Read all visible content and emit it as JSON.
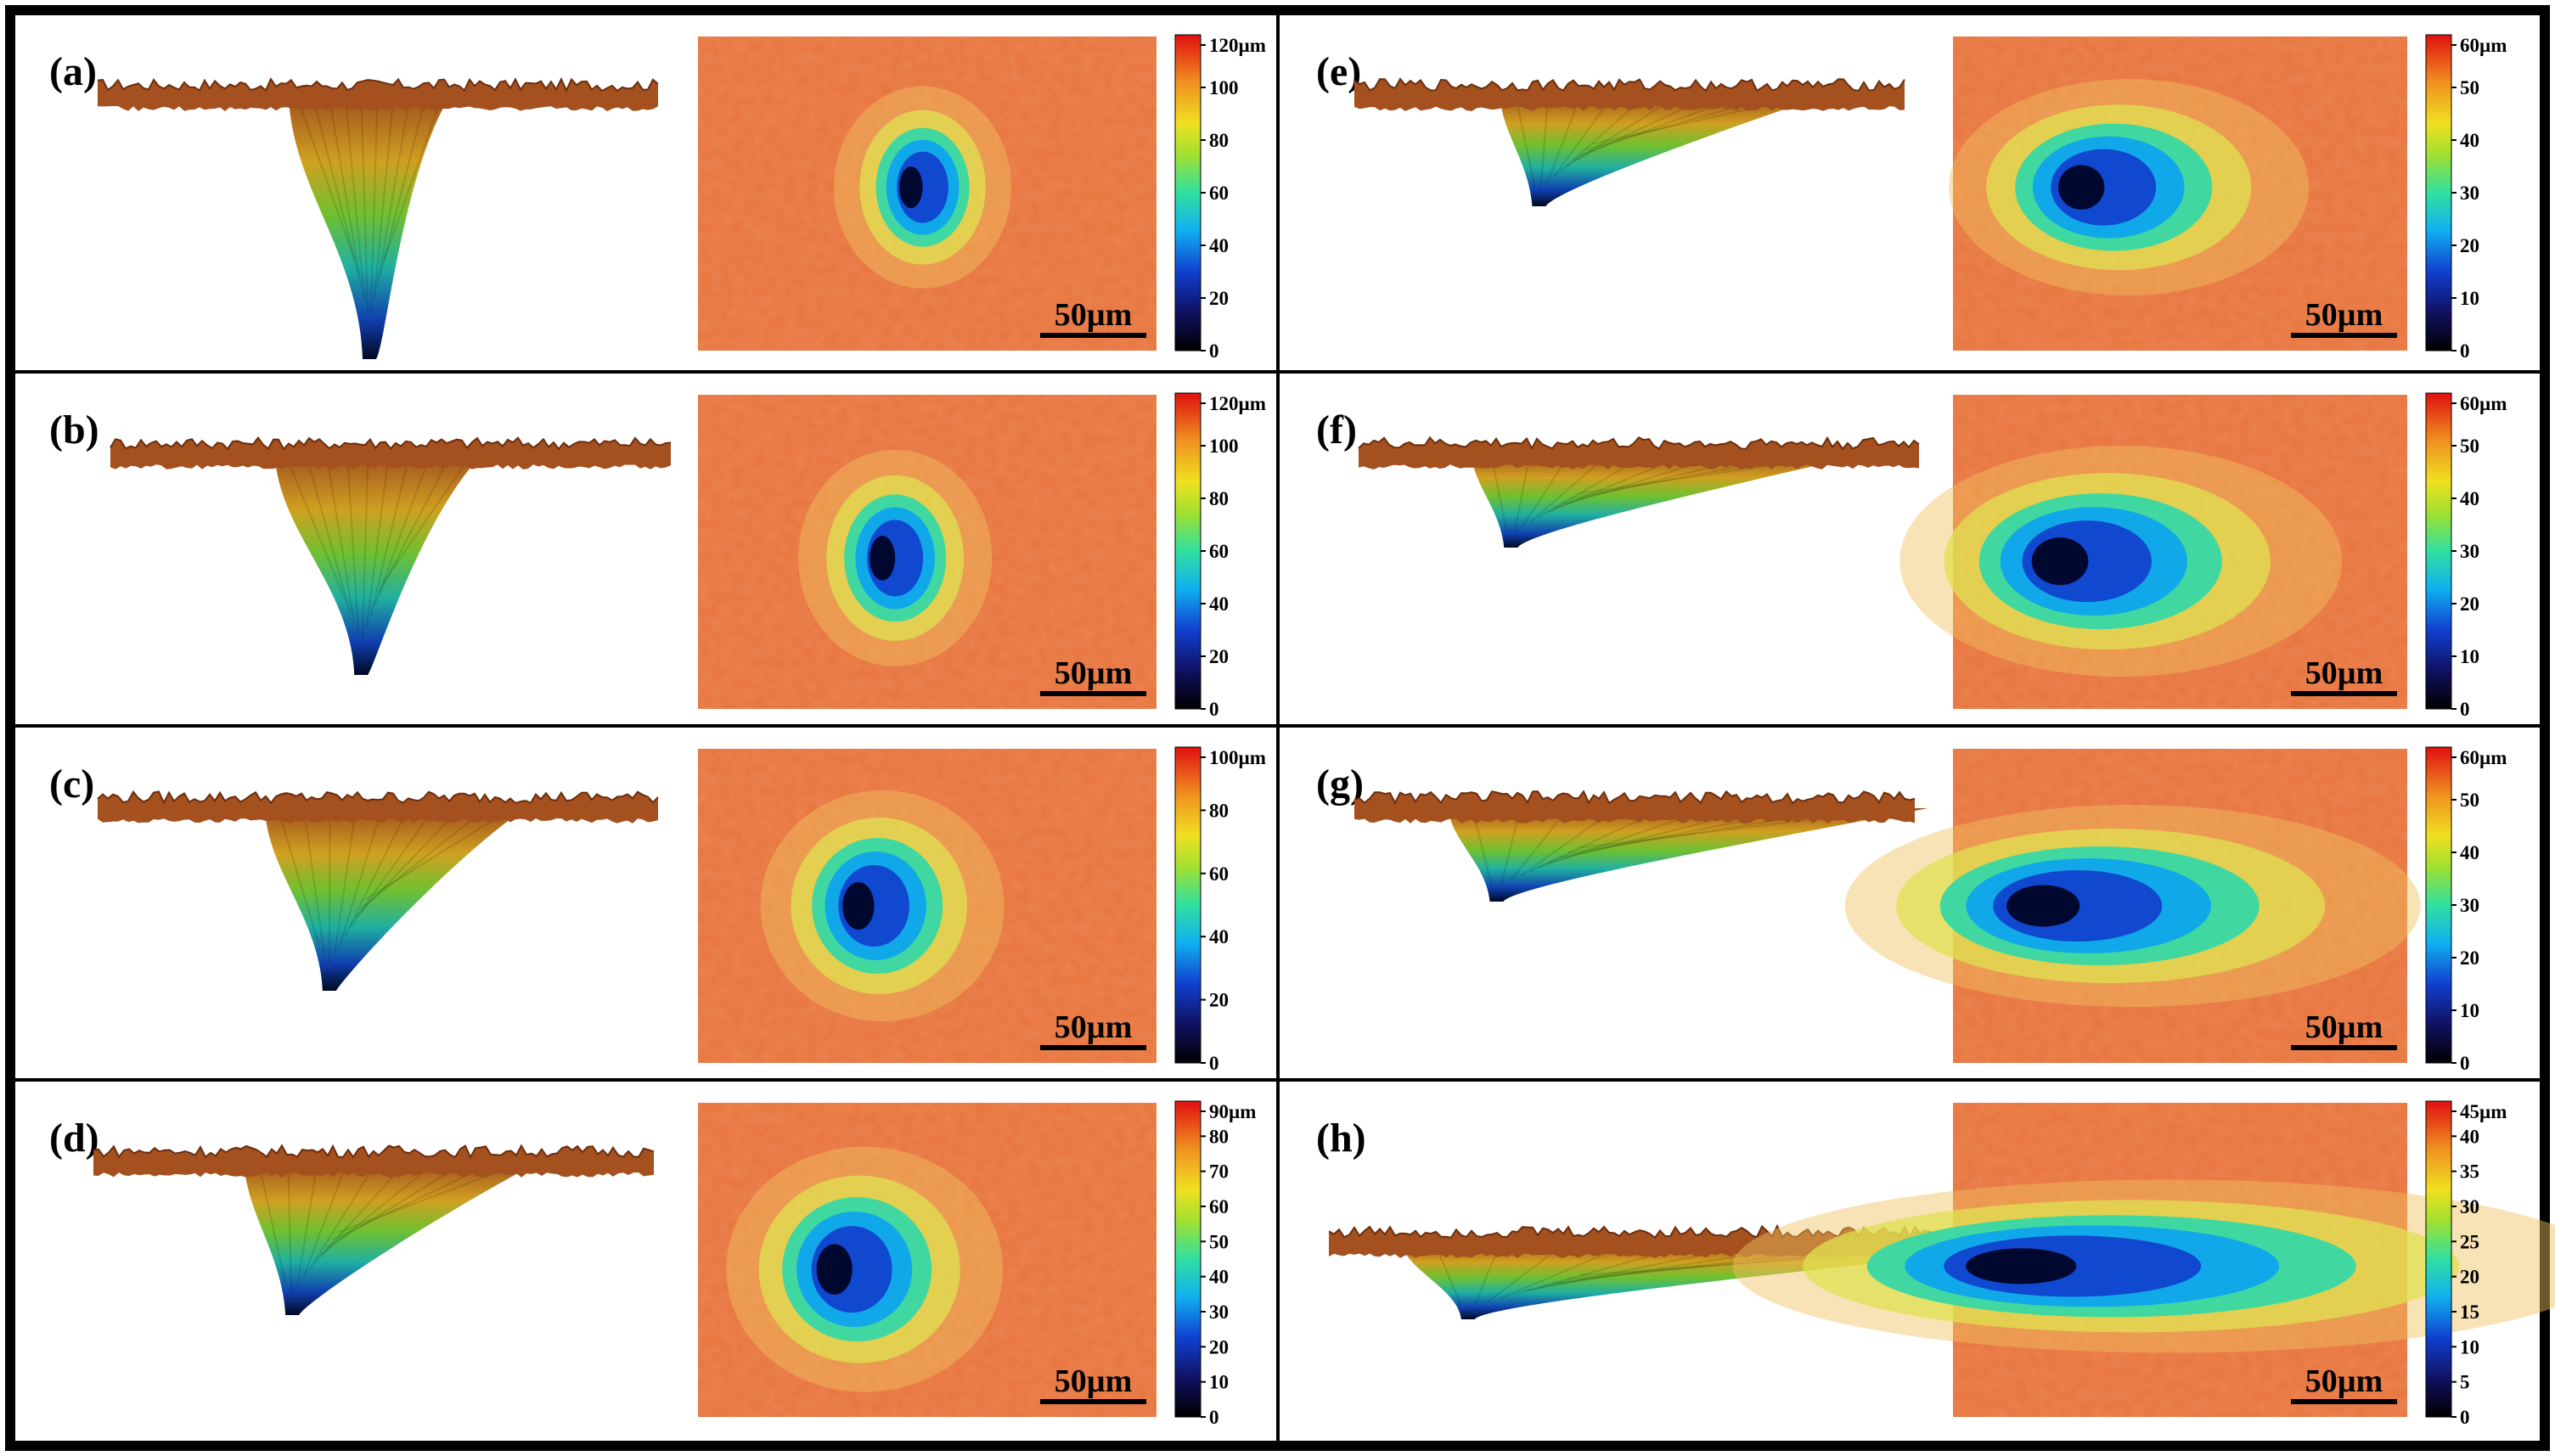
{
  "figure": {
    "panels": [
      {
        "label": "(a)",
        "colorbar": {
          "max": "120µm",
          "ticks": [
            "0",
            "20",
            "40",
            "60",
            "80",
            "100"
          ]
        },
        "scale_bar": "50µm"
      },
      {
        "label": "(b)",
        "colorbar": {
          "max": "120µm",
          "ticks": [
            "0",
            "20",
            "40",
            "60",
            "80",
            "100"
          ]
        },
        "scale_bar": "50µm"
      },
      {
        "label": "(c)",
        "colorbar": {
          "max": "100µm",
          "ticks": [
            "0",
            "20",
            "40",
            "60",
            "80"
          ]
        },
        "scale_bar": "50µm"
      },
      {
        "label": "(d)",
        "colorbar": {
          "max": "90µm",
          "ticks": [
            "0",
            "10",
            "20",
            "30",
            "40",
            "50",
            "60",
            "70",
            "80"
          ]
        },
        "scale_bar": "50µm"
      },
      {
        "label": "(e)",
        "colorbar": {
          "max": "60µm",
          "ticks": [
            "0",
            "10",
            "20",
            "30",
            "40",
            "50"
          ]
        },
        "scale_bar": "50µm"
      },
      {
        "label": "(f)",
        "colorbar": {
          "max": "60µm",
          "ticks": [
            "0",
            "10",
            "20",
            "30",
            "40",
            "50"
          ]
        },
        "scale_bar": "50µm"
      },
      {
        "label": "(g)",
        "colorbar": {
          "max": "60µm",
          "ticks": [
            "0",
            "10",
            "20",
            "30",
            "40",
            "50"
          ]
        },
        "scale_bar": "50µm"
      },
      {
        "label": "(h)",
        "colorbar": {
          "max": "45µm",
          "ticks": [
            "0",
            "5",
            "10",
            "15",
            "20",
            "25",
            "30",
            "35",
            "40"
          ]
        },
        "scale_bar": "50µm"
      }
    ]
  },
  "colors": {
    "surface": "#e8743c",
    "surface_dark": "#c85a28",
    "profile_top": "#9b4a1e",
    "colormap": [
      "#000000",
      "#1030c8",
      "#10a0f0",
      "#30e0a0",
      "#a0e030",
      "#f0e020",
      "#f09020",
      "#e02010"
    ]
  }
}
